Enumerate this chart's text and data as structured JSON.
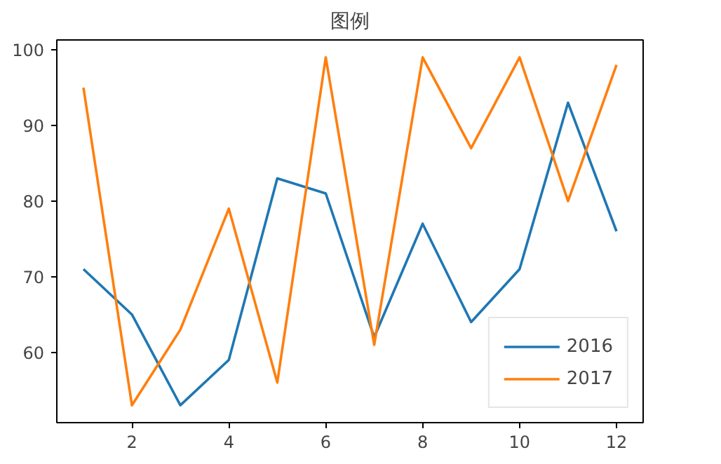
{
  "chart_data": {
    "type": "line",
    "title": "图例",
    "x": [
      1,
      2,
      3,
      4,
      5,
      6,
      7,
      8,
      9,
      10,
      11,
      12
    ],
    "series": [
      {
        "name": "2016",
        "color": "#1f77b4",
        "values": [
          71,
          65,
          53,
          59,
          83,
          81,
          62,
          77,
          64,
          71,
          93,
          76
        ]
      },
      {
        "name": "2017",
        "color": "#ff7f0e",
        "values": [
          95,
          53,
          63,
          79,
          56,
          99,
          61,
          99,
          87,
          99,
          80,
          98
        ]
      }
    ],
    "xlim": [
      0.45,
      12.55
    ],
    "xticks": [
      2,
      4,
      6,
      8,
      10,
      12
    ],
    "ylim": [
      50.7,
      101.3
    ],
    "yticks": [
      60,
      70,
      80,
      90,
      100
    ],
    "grid": false,
    "legend": "bottom right",
    "line_style": "solid",
    "marker": "none"
  }
}
